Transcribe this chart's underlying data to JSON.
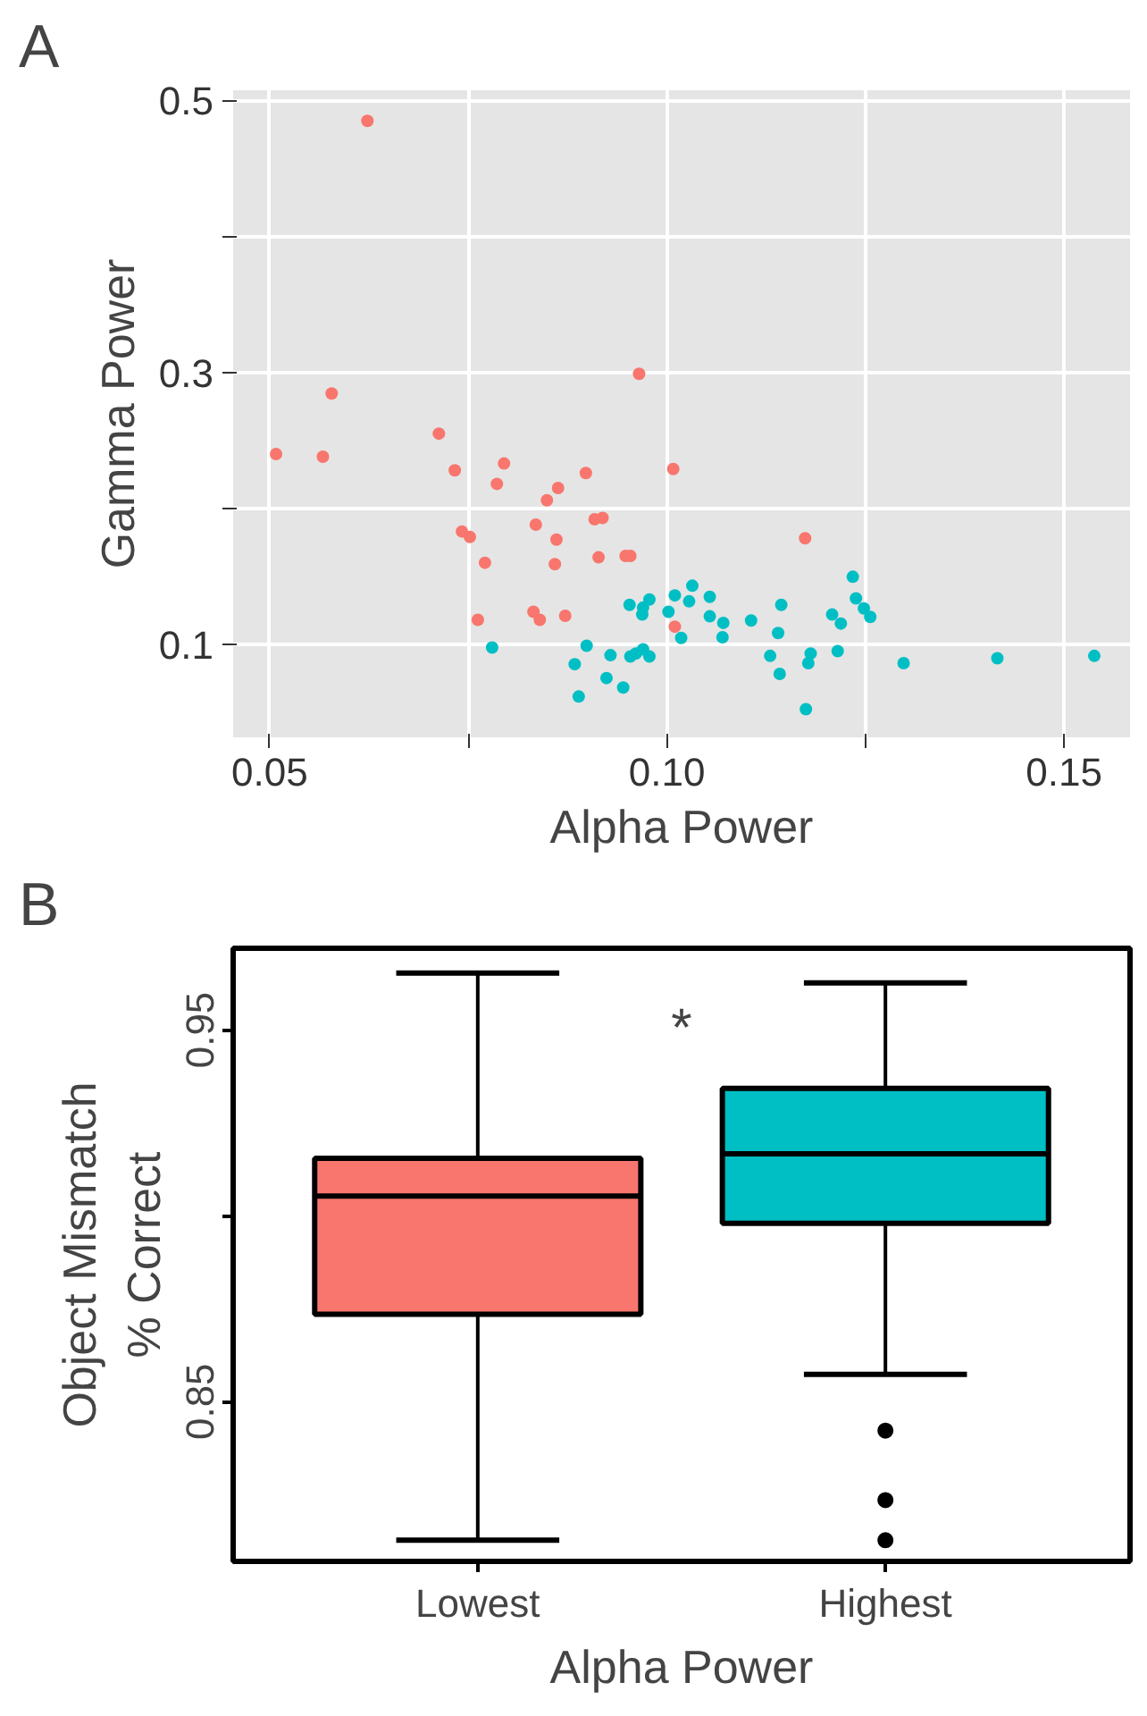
{
  "chart_data": [
    {
      "type": "scatter",
      "title": "A",
      "xlabel": "Alpha Power",
      "ylabel": "Gamma Power",
      "xlim": [
        0.0454,
        0.1583
      ],
      "ylim": [
        0.0316,
        0.5075
      ],
      "xticks": [
        {
          "value": 0.05,
          "label": "0.05"
        },
        {
          "value": 0.075,
          "label": null
        },
        {
          "value": 0.1,
          "label": "0.10"
        },
        {
          "value": 0.125,
          "label": null
        },
        {
          "value": 0.15,
          "label": "0.15"
        }
      ],
      "yticks": [
        0.1,
        {
          "value": 0.2,
          "label": null
        },
        0.3,
        {
          "value": 0.4,
          "label": null
        },
        0.5
      ],
      "grid": true,
      "marker": "circle",
      "series": [
        {
          "color": "#f8766d",
          "x": [
            0.0623,
            0.0578,
            0.0508,
            0.0567,
            0.0713,
            0.0733,
            0.0795,
            0.0786,
            0.0863,
            0.0849,
            0.0898,
            0.0965,
            0.1008,
            0.0742,
            0.0752,
            0.0835,
            0.0861,
            0.0909,
            0.0919,
            0.0771,
            0.0859,
            0.0914,
            0.0948,
            0.0954,
            0.0762,
            0.0832,
            0.084,
            0.0872,
            0.101,
            0.1174
          ],
          "values": [
            0.485,
            0.2845,
            0.24,
            0.238,
            0.255,
            0.228,
            0.233,
            0.218,
            0.215,
            0.206,
            0.226,
            0.299,
            0.229,
            0.183,
            0.179,
            0.188,
            0.177,
            0.192,
            0.193,
            0.16,
            0.159,
            0.164,
            0.165,
            0.165,
            0.118,
            0.124,
            0.118,
            0.121,
            0.113,
            0.178
          ]
        },
        {
          "color": "#00bfc4",
          "x": [
            0.078,
            0.0953,
            0.0978,
            0.097,
            0.0969,
            0.1002,
            0.101,
            0.1032,
            0.1018,
            0.0899,
            0.0884,
            0.0929,
            0.0924,
            0.0945,
            0.0889,
            0.0954,
            0.0961,
            0.097,
            0.0978,
            0.1028,
            0.1054,
            0.1054,
            0.1071,
            0.107,
            0.1106,
            0.1144,
            0.114,
            0.113,
            0.1142,
            0.1181,
            0.1178,
            0.1175,
            0.1208,
            0.1219,
            0.1215,
            0.1234,
            0.1238,
            0.1248,
            0.1256,
            0.1298,
            0.1416,
            0.1538
          ],
          "values": [
            0.0977,
            0.129,
            0.133,
            0.127,
            0.122,
            0.124,
            0.136,
            0.1431,
            0.1047,
            0.099,
            0.0854,
            0.092,
            0.0752,
            0.0682,
            0.0616,
            0.0911,
            0.0933,
            0.0964,
            0.0911,
            0.1316,
            0.135,
            0.1206,
            0.1158,
            0.1052,
            0.1175,
            0.129,
            0.1083,
            0.0915,
            0.0783,
            0.0933,
            0.0862,
            0.0523,
            0.1219,
            0.1153,
            0.095,
            0.1497,
            0.1338,
            0.1264,
            0.1202,
            0.0862,
            0.0898,
            0.0915
          ]
        }
      ]
    },
    {
      "type": "box",
      "title": "B",
      "xlabel": "Alpha Power",
      "ylabel": "Object Mismatch\n% Correct",
      "categories": [
        "Lowest",
        "Highest"
      ],
      "colors": [
        "#f8766d",
        "#00bfc4"
      ],
      "ylim": [
        0.807,
        0.972
      ],
      "yticks": [
        0.85,
        {
          "value": 0.9,
          "label": null
        },
        0.95
      ],
      "annotations": [
        "*"
      ],
      "boxes": [
        {
          "low": 0.8127,
          "q1": 0.8735,
          "median": 0.9053,
          "q3": 0.9155,
          "high": 0.9653
        },
        {
          "low": 0.8573,
          "q1": 0.898,
          "median": 0.9167,
          "q3": 0.9343,
          "high": 0.9627,
          "outliers": [
            0.8422,
            0.8235,
            0.8127
          ]
        }
      ]
    }
  ]
}
